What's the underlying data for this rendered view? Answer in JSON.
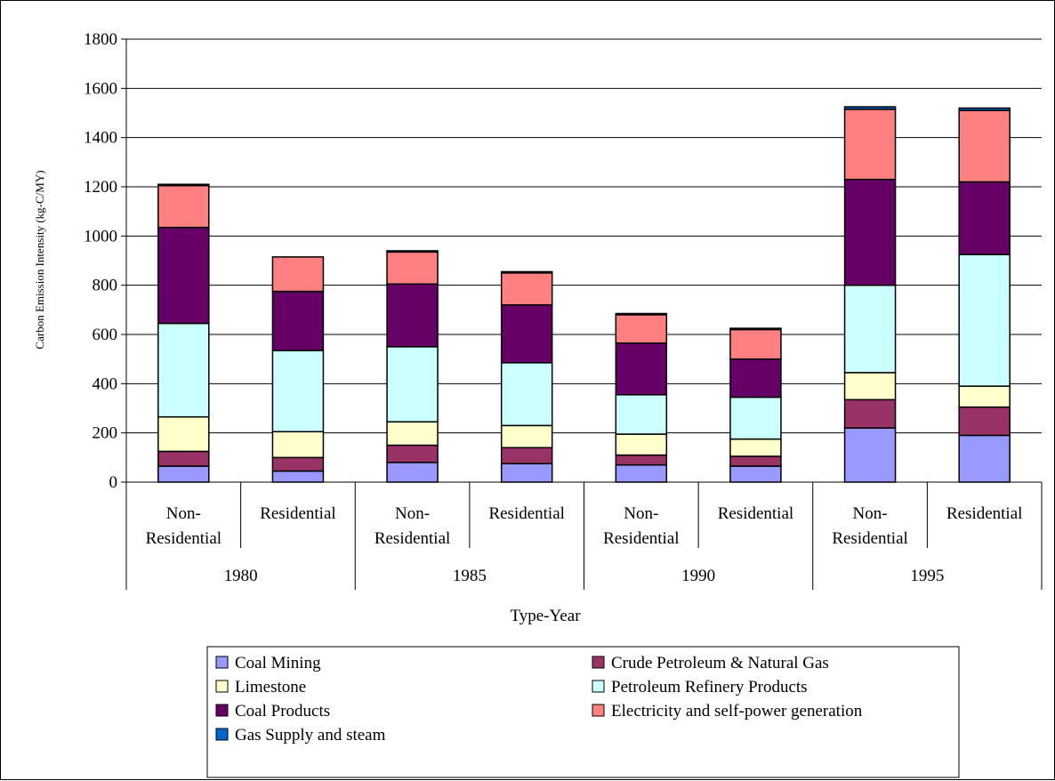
{
  "chart_data": {
    "type": "bar",
    "stacked": true,
    "title": "",
    "xlabel": "Type-Year",
    "ylabel": "Carbon Emission Intensity (kg-C/MY)",
    "ylim": [
      0,
      1800
    ],
    "yticks": [
      "0",
      "200",
      "400",
      "600",
      "800",
      "1000",
      "1200",
      "1400",
      "1600",
      "1800"
    ],
    "grid": true,
    "legend_position": "bottom",
    "categories": [
      {
        "type": "Non-Residential",
        "year": "1980"
      },
      {
        "type": "Residential",
        "year": "1980"
      },
      {
        "type": "Non-Residential",
        "year": "1985"
      },
      {
        "type": "Residential",
        "year": "1985"
      },
      {
        "type": "Non-Residential",
        "year": "1990"
      },
      {
        "type": "Residential",
        "year": "1990"
      },
      {
        "type": "Non-Residential",
        "year": "1995"
      },
      {
        "type": "Residential",
        "year": "1995"
      }
    ],
    "years": [
      "1980",
      "1985",
      "1990",
      "1995"
    ],
    "series": [
      {
        "name": "Coal Mining",
        "color": "#9999ff",
        "values": [
          65,
          45,
          80,
          75,
          70,
          65,
          220,
          190
        ]
      },
      {
        "name": "Crude Petroleum & Natural Gas",
        "color": "#993366",
        "values": [
          60,
          55,
          70,
          65,
          40,
          40,
          115,
          115
        ]
      },
      {
        "name": "Limestone",
        "color": "#ffffcc",
        "values": [
          140,
          105,
          95,
          90,
          85,
          70,
          110,
          85
        ]
      },
      {
        "name": "Petroleum Refinery Products",
        "color": "#ccffff",
        "values": [
          380,
          330,
          305,
          255,
          160,
          170,
          355,
          535
        ]
      },
      {
        "name": "Coal Products",
        "color": "#660066",
        "values": [
          390,
          240,
          255,
          235,
          210,
          155,
          430,
          295
        ]
      },
      {
        "name": "Electricity and self-power generation",
        "color": "#ff8080",
        "values": [
          170,
          140,
          130,
          130,
          115,
          120,
          285,
          290
        ]
      },
      {
        "name": "Gas Supply and steam",
        "color": "#0066cc",
        "values": [
          5,
          0,
          5,
          5,
          5,
          5,
          10,
          10
        ]
      }
    ]
  }
}
